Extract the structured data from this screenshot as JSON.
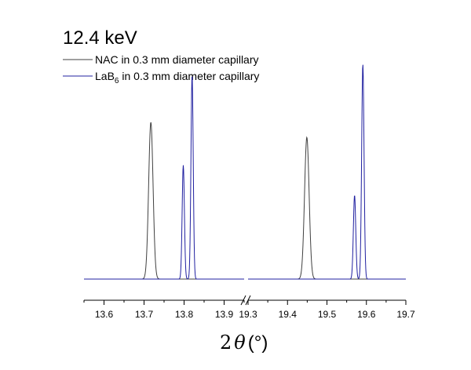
{
  "chart_data": {
    "type": "line",
    "title": "12.4 keV",
    "xlabel": {
      "prefix": "2",
      "symbol": "θ",
      "unit": "(°)"
    },
    "legend": {
      "placement": "top-left",
      "entries": [
        {
          "name": "NAC  in 0.3 mm diameter capillary",
          "color": "#404040"
        },
        {
          "name_main": "LaB",
          "name_sub": "6",
          "name_rest": "  in 0.3 mm diameter capillary",
          "color": "#2020a0"
        }
      ]
    },
    "axis_break": true,
    "segments": [
      {
        "xlim": [
          13.55,
          13.95
        ],
        "ticks": [
          "13.6",
          "13.7",
          "13.8",
          "13.9"
        ]
      },
      {
        "xlim": [
          19.3,
          19.7
        ],
        "ticks": [
          "19.3",
          "19.4",
          "19.5",
          "19.6",
          "19.7"
        ]
      }
    ],
    "ylim": [
      0,
      1.0
    ],
    "series": [
      {
        "name": "NAC",
        "color": "#404040",
        "baseline": 0.0,
        "peaks": [
          {
            "x": 13.717,
            "height": 0.73,
            "sigma": 0.0055
          },
          {
            "x": 19.449,
            "height": 0.66,
            "sigma": 0.0058
          }
        ]
      },
      {
        "name": "LaB6",
        "color": "#2020a0",
        "baseline": 0.0,
        "peaks": [
          {
            "x": 13.798,
            "height": 0.53,
            "sigma": 0.0028
          },
          {
            "x": 13.82,
            "height": 0.95,
            "sigma": 0.0028
          },
          {
            "x": 19.57,
            "height": 0.39,
            "sigma": 0.003
          },
          {
            "x": 19.591,
            "height": 1.0,
            "sigma": 0.003
          }
        ]
      }
    ]
  }
}
